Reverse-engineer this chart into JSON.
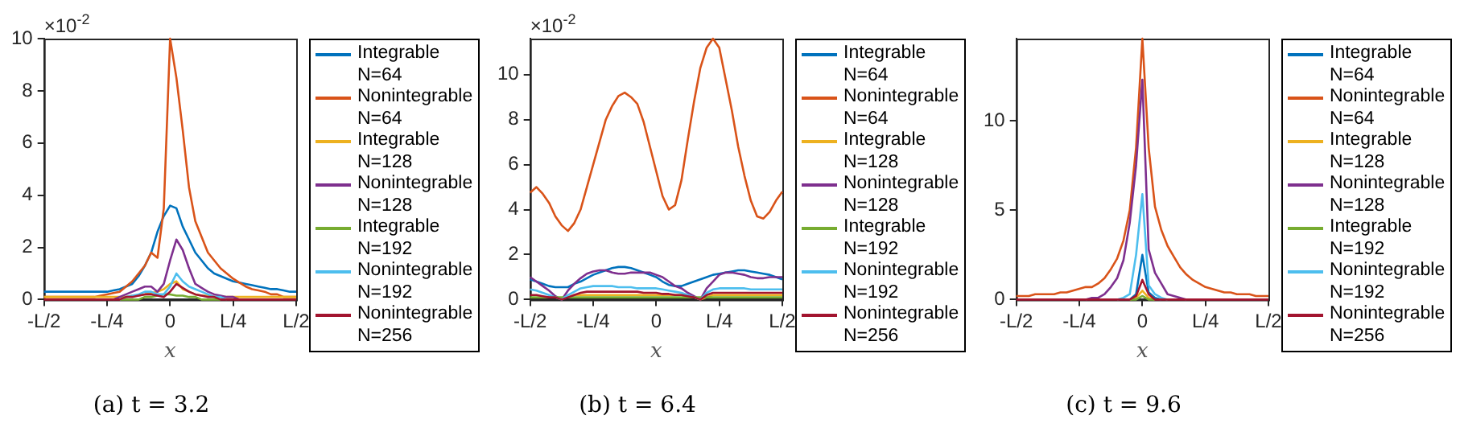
{
  "chart_data": [
    {
      "type": "line",
      "title": "(a) t = 3.2",
      "xlabel": "x",
      "annotations": [
        "×10$^{-2}$"
      ],
      "legend": "right",
      "grid": false,
      "marker": "none",
      "line_style": "solid",
      "categories": [
        "-L/2",
        null,
        null,
        null,
        null,
        null,
        null,
        null,
        null,
        null,
        "-L/4",
        null,
        null,
        null,
        null,
        null,
        null,
        null,
        null,
        null,
        "0",
        null,
        null,
        null,
        null,
        null,
        null,
        null,
        null,
        null,
        "L/4",
        null,
        null,
        null,
        null,
        null,
        null,
        null,
        null,
        null,
        "L/2"
      ],
      "ylim": [
        0,
        10
      ],
      "yticks": [
        0,
        2,
        4,
        6,
        8,
        10
      ],
      "series": [
        {
          "name": "Integrable N=64",
          "color": "#0072bd",
          "values": [
            0.3,
            0.3,
            0.3,
            0.3,
            0.3,
            0.3,
            0.3,
            0.3,
            0.3,
            0.3,
            0.3,
            0.35,
            0.4,
            0.5,
            0.6,
            0.9,
            1.3,
            1.8,
            2.6,
            3.2,
            3.6,
            3.5,
            2.8,
            2.3,
            1.8,
            1.5,
            1.2,
            1,
            0.9,
            0.8,
            0.7,
            0.65,
            0.6,
            0.55,
            0.5,
            0.45,
            0.4,
            0.4,
            0.35,
            0.3,
            0.3
          ]
        },
        {
          "name": "Nonintegrable N=64",
          "color": "#d95319",
          "values": [
            0.1,
            0.1,
            0.1,
            0.1,
            0.1,
            0.1,
            0.1,
            0.1,
            0.1,
            0.15,
            0.2,
            0.25,
            0.3,
            0.5,
            0.7,
            1,
            1.3,
            1.8,
            1.6,
            3.5,
            10,
            8.5,
            6.5,
            4.3,
            3,
            2.4,
            1.8,
            1.5,
            1.2,
            1,
            0.8,
            0.65,
            0.5,
            0.4,
            0.35,
            0.3,
            0.2,
            0.2,
            0.1,
            0.1,
            0.1
          ]
        },
        {
          "name": "Integrable N=128",
          "color": "#edb120",
          "values": [
            0.1,
            0.1,
            0.1,
            0.1,
            0.1,
            0.1,
            0.1,
            0.1,
            0.1,
            0.1,
            0.1,
            0.1,
            0.1,
            0.1,
            0.15,
            0.15,
            0.2,
            0.25,
            0.3,
            0.4,
            0.6,
            0.7,
            0.4,
            0.3,
            0.2,
            0.15,
            0.15,
            0.1,
            0.1,
            0.1,
            0.1,
            0.1,
            0.1,
            0.1,
            0.1,
            0.1,
            0.1,
            0.1,
            0.1,
            0.1,
            0.1
          ]
        },
        {
          "name": "Nonintegrable N=128",
          "color": "#7e2f8e",
          "values": [
            null,
            null,
            null,
            null,
            null,
            null,
            null,
            null,
            null,
            null,
            null,
            0,
            0.1,
            0.2,
            0.3,
            0.4,
            0.5,
            0.5,
            0.3,
            0.6,
            1.5,
            2.3,
            1.9,
            1.2,
            0.6,
            0.45,
            0.3,
            0.2,
            0.15,
            0.1,
            0.1,
            0,
            null,
            null,
            null,
            null,
            null,
            null,
            null,
            null,
            null
          ]
        },
        {
          "name": "Integrable N=192",
          "color": "#77ac30",
          "values": [
            null,
            null,
            null,
            null,
            null,
            null,
            null,
            null,
            null,
            null,
            null,
            null,
            0,
            0,
            0,
            0,
            0.1,
            0.1,
            0.15,
            0.2,
            0.2,
            0.15,
            0.15,
            0.1,
            0.1,
            0,
            0,
            0,
            0,
            null,
            null,
            null,
            null,
            null,
            null,
            null,
            null,
            null,
            null,
            null,
            null
          ]
        },
        {
          "name": "Nonintegrable N=192",
          "color": "#4dbeee",
          "values": [
            null,
            null,
            null,
            null,
            null,
            null,
            null,
            null,
            null,
            null,
            null,
            null,
            0,
            0.1,
            0.15,
            0.2,
            0.3,
            0.3,
            0.2,
            0.2,
            0.5,
            1,
            0.7,
            0.5,
            0.4,
            0.3,
            0.2,
            0.1,
            0.1,
            0,
            null,
            null,
            null,
            null,
            null,
            null,
            null,
            null,
            null,
            null,
            null
          ]
        },
        {
          "name": "Nonintegrable N=256",
          "color": "#a2142f",
          "values": [
            0,
            0,
            0,
            0,
            0,
            0,
            0,
            0,
            0,
            0,
            0,
            0,
            0,
            0.1,
            0.1,
            0.15,
            0.2,
            0.2,
            0.15,
            0.1,
            0.3,
            0.6,
            0.45,
            0.3,
            0.2,
            0.15,
            0.1,
            0.1,
            0,
            0,
            0,
            0,
            0,
            0,
            0,
            0,
            0,
            0,
            0,
            0,
            0
          ]
        }
      ]
    },
    {
      "type": "line",
      "title": "(b) t = 6.4",
      "xlabel": "x",
      "annotations": [
        "×10$^{-2}$"
      ],
      "legend": "right",
      "grid": false,
      "marker": "none",
      "line_style": "solid",
      "categories": [
        "-L/2",
        null,
        null,
        null,
        null,
        null,
        null,
        null,
        null,
        null,
        "-L/4",
        null,
        null,
        null,
        null,
        null,
        null,
        null,
        null,
        null,
        "0",
        null,
        null,
        null,
        null,
        null,
        null,
        null,
        null,
        null,
        "L/4",
        null,
        null,
        null,
        null,
        null,
        null,
        null,
        null,
        null,
        "L/2"
      ],
      "ylim": [
        0,
        11.6
      ],
      "yticks": [
        0,
        2,
        4,
        6,
        8,
        10
      ],
      "series": [
        {
          "name": "Integrable N=64",
          "color": "#0072bd",
          "values": [
            0.9,
            0.8,
            0.7,
            0.6,
            0.55,
            0.55,
            0.55,
            0.7,
            0.8,
            0.95,
            1.1,
            1.2,
            1.3,
            1.4,
            1.45,
            1.45,
            1.4,
            1.3,
            1.2,
            1.1,
            1,
            0.8,
            0.65,
            0.6,
            0.6,
            0.7,
            0.8,
            0.9,
            1,
            1.1,
            1.15,
            1.2,
            1.25,
            1.3,
            1.3,
            1.25,
            1.2,
            1.15,
            1.1,
            1,
            0.9
          ]
        },
        {
          "name": "Nonintegrable N=64",
          "color": "#d95319",
          "values": [
            4.75,
            5,
            4.7,
            4.3,
            3.7,
            3.3,
            3.05,
            3.4,
            4,
            5,
            6,
            7,
            8,
            8.6,
            9.05,
            9.2,
            9,
            8.7,
            7.9,
            6.8,
            5.7,
            4.6,
            4,
            4.2,
            5.3,
            7.1,
            8.8,
            10.3,
            11.2,
            11.6,
            11.2,
            9.8,
            8.4,
            6.8,
            5.5,
            4.4,
            3.7,
            3.6,
            3.9,
            4.4,
            4.8
          ]
        },
        {
          "name": "Integrable N=128",
          "color": "#edb120",
          "values": [
            null,
            null,
            null,
            null,
            null,
            null,
            0.1,
            0.2,
            0.2,
            0.2,
            0.2,
            0.2,
            0.2,
            0.2,
            0.2,
            0.2,
            0.2,
            0.2,
            0.2,
            0.2,
            0.2,
            0.2,
            0.2,
            0.2,
            0.2,
            0.1,
            0.1,
            0,
            0.1,
            0.2,
            0.2,
            0.2,
            0.2,
            0.2,
            0.2,
            0.2,
            0.2,
            0.2,
            0.2,
            0.2,
            0.2
          ]
        },
        {
          "name": "Nonintegrable N=128",
          "color": "#7e2f8e",
          "values": [
            1,
            0.8,
            0.6,
            0.4,
            0.15,
            0,
            0.4,
            0.7,
            0.95,
            1.15,
            1.25,
            1.3,
            1.3,
            1.2,
            1.15,
            1.15,
            1.2,
            1.2,
            1.2,
            1.2,
            1.1,
            1,
            0.8,
            0.6,
            0.5,
            0.3,
            0.15,
            0,
            0.5,
            0.8,
            1.1,
            1.2,
            1.2,
            1.15,
            1.1,
            1,
            0.95,
            0.95,
            1,
            1,
            1
          ]
        },
        {
          "name": "Integrable N=192",
          "color": "#77ac30",
          "values": [
            0.1,
            0.1,
            0.1,
            0.1,
            0.1,
            0.1,
            0.1,
            0.1,
            0.1,
            0.1,
            0.1,
            0.1,
            0.1,
            0.1,
            0.1,
            0.1,
            0.1,
            0.1,
            0.1,
            0.1,
            0.1,
            0.1,
            0.1,
            0.1,
            0.1,
            0.1,
            0.1,
            0.1,
            0.1,
            0.1,
            0.1,
            0.1,
            0.1,
            0.1,
            0.1,
            0.1,
            0.1,
            0.1,
            0.1,
            0.1,
            0.1
          ]
        },
        {
          "name": "Nonintegrable N=192",
          "color": "#4dbeee",
          "values": [
            0.45,
            0.4,
            0.3,
            0.2,
            0.1,
            0,
            0.2,
            0.35,
            0.5,
            0.55,
            0.6,
            0.6,
            0.6,
            0.6,
            0.55,
            0.55,
            0.55,
            0.5,
            0.5,
            0.5,
            0.5,
            0.45,
            0.4,
            0.35,
            0.3,
            0.2,
            0.1,
            0,
            0.3,
            0.45,
            0.5,
            0.5,
            0.5,
            0.5,
            0.5,
            0.45,
            0.45,
            0.45,
            0.45,
            0.45,
            0.45
          ]
        },
        {
          "name": "Nonintegrable N=256",
          "color": "#a2142f",
          "values": [
            0.2,
            0.2,
            0.15,
            0.1,
            0.1,
            0,
            0.1,
            0.2,
            0.3,
            0.35,
            0.35,
            0.35,
            0.35,
            0.35,
            0.35,
            0.35,
            0.35,
            0.35,
            0.3,
            0.3,
            0.3,
            0.25,
            0.25,
            0.2,
            0.2,
            0.15,
            0.1,
            0,
            0.2,
            0.3,
            0.3,
            0.3,
            0.3,
            0.3,
            0.3,
            0.3,
            0.3,
            0.3,
            0.3,
            0.3,
            0.3
          ]
        }
      ]
    },
    {
      "type": "line",
      "title": "(c) t = 9.6",
      "xlabel": "x",
      "legend": "right",
      "grid": false,
      "marker": "none",
      "line_style": "solid",
      "categories": [
        "-L/2",
        null,
        null,
        null,
        null,
        null,
        null,
        null,
        null,
        null,
        "-L/4",
        null,
        null,
        null,
        null,
        null,
        null,
        null,
        null,
        null,
        "0",
        null,
        null,
        null,
        null,
        null,
        null,
        null,
        null,
        null,
        "L/4",
        null,
        null,
        null,
        null,
        null,
        null,
        null,
        null,
        null,
        "L/2"
      ],
      "ylim": [
        0,
        14.6
      ],
      "yticks": [
        0,
        5,
        10
      ],
      "series": [
        {
          "name": "Integrable N=64",
          "color": "#0072bd",
          "values": [
            null,
            null,
            null,
            null,
            null,
            null,
            null,
            null,
            null,
            null,
            null,
            null,
            null,
            null,
            null,
            null,
            null,
            null,
            0,
            0.3,
            2.5,
            0.4,
            0.1,
            0,
            null,
            null,
            null,
            null,
            null,
            null,
            null,
            null,
            null,
            null,
            null,
            null,
            null,
            null,
            null,
            null,
            null
          ]
        },
        {
          "name": "Nonintegrable N=64",
          "color": "#d95319",
          "values": [
            0.2,
            0.2,
            0.2,
            0.3,
            0.3,
            0.3,
            0.3,
            0.4,
            0.4,
            0.5,
            0.6,
            0.7,
            0.7,
            0.9,
            1.2,
            1.7,
            2.3,
            3.3,
            5,
            8.5,
            14.6,
            8.5,
            5.2,
            3.9,
            3,
            2.4,
            1.8,
            1.4,
            1.1,
            0.9,
            0.7,
            0.6,
            0.5,
            0.4,
            0.4,
            0.3,
            0.3,
            0.3,
            0.2,
            0.2,
            0.2
          ]
        },
        {
          "name": "Integrable N=128",
          "color": "#edb120",
          "values": [
            null,
            null,
            null,
            null,
            null,
            null,
            null,
            null,
            null,
            null,
            null,
            null,
            null,
            null,
            null,
            null,
            null,
            null,
            0,
            0.1,
            0.5,
            0.1,
            0,
            null,
            null,
            null,
            null,
            null,
            null,
            null,
            null,
            null,
            null,
            null,
            null,
            null,
            null,
            null,
            null,
            null,
            null
          ]
        },
        {
          "name": "Nonintegrable N=128",
          "color": "#7e2f8e",
          "values": [
            null,
            null,
            null,
            null,
            null,
            null,
            null,
            null,
            null,
            null,
            null,
            0,
            0.1,
            0.1,
            0.3,
            0.7,
            1.2,
            2.2,
            4.3,
            7.5,
            12.3,
            2.8,
            1.5,
            0.9,
            0.3,
            0.2,
            0.1,
            0,
            null,
            null,
            null,
            null,
            null,
            null,
            null,
            null,
            null,
            null,
            null,
            null,
            null
          ]
        },
        {
          "name": "Integrable N=192",
          "color": "#77ac30",
          "values": [
            null,
            null,
            null,
            null,
            null,
            null,
            null,
            null,
            null,
            null,
            null,
            null,
            null,
            null,
            null,
            null,
            null,
            null,
            0,
            0,
            0.2,
            0,
            0,
            null,
            null,
            null,
            null,
            null,
            null,
            null,
            null,
            null,
            null,
            null,
            null,
            null,
            null,
            null,
            null,
            null,
            null
          ]
        },
        {
          "name": "Nonintegrable N=192",
          "color": "#4dbeee",
          "values": [
            null,
            null,
            null,
            null,
            null,
            null,
            null,
            null,
            null,
            null,
            null,
            null,
            null,
            null,
            null,
            null,
            0,
            0.1,
            0.3,
            2.5,
            5.9,
            0.8,
            0.3,
            0.1,
            0,
            null,
            null,
            null,
            null,
            null,
            null,
            null,
            null,
            null,
            null,
            null,
            null,
            null,
            null,
            null,
            null
          ]
        },
        {
          "name": "Nonintegrable N=256",
          "color": "#a2142f",
          "values": [
            0,
            0,
            0,
            0,
            0,
            0,
            0,
            0,
            0,
            0,
            0,
            0,
            0,
            0,
            0,
            0,
            0,
            0,
            0,
            0.2,
            1.1,
            0.3,
            0,
            0,
            0,
            0,
            0,
            0,
            0,
            0,
            0,
            0,
            0,
            0,
            0,
            0,
            0,
            0,
            0,
            0,
            0
          ]
        }
      ]
    }
  ]
}
